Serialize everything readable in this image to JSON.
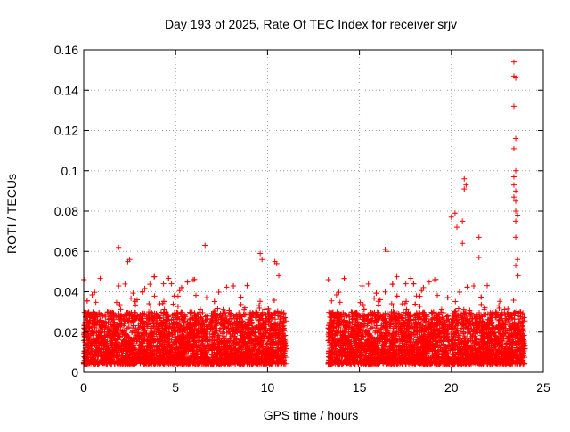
{
  "chart_data": {
    "type": "scatter",
    "title": "Day 193 of 2025, Rate Of TEC Index for receiver srjv",
    "xlabel": "GPS time / hours",
    "ylabel": "ROTI / TECUs",
    "xlim": [
      0,
      25
    ],
    "ylim": [
      0,
      0.16
    ],
    "xticks": [
      0,
      5,
      10,
      15,
      20,
      25
    ],
    "xtick_labels": [
      "0",
      "5",
      "10",
      "15",
      "20",
      "25"
    ],
    "yticks": [
      0,
      0.02,
      0.04,
      0.06,
      0.08,
      0.1,
      0.12,
      0.14,
      0.16
    ],
    "ytick_labels": [
      "0",
      "0.02",
      "0.04",
      "0.06",
      "0.08",
      "0.1",
      "0.12",
      "0.14",
      "0.16"
    ],
    "grid": true,
    "marker": "+",
    "color": "#ff0000",
    "bulk_band": {
      "segments": [
        [
          0.0,
          11.0
        ],
        [
          13.3,
          24.0
        ]
      ],
      "y_min": 0.004,
      "y_typical_max": 0.03,
      "approx_points": 9000
    },
    "notable_points": [
      {
        "x": 1.9,
        "y": 0.062
      },
      {
        "x": 2.4,
        "y": 0.055
      },
      {
        "x": 2.5,
        "y": 0.056
      },
      {
        "x": 6.6,
        "y": 0.063
      },
      {
        "x": 9.6,
        "y": 0.059
      },
      {
        "x": 9.7,
        "y": 0.056
      },
      {
        "x": 10.4,
        "y": 0.055
      },
      {
        "x": 10.5,
        "y": 0.054
      },
      {
        "x": 16.4,
        "y": 0.061
      },
      {
        "x": 16.5,
        "y": 0.06
      },
      {
        "x": 20.0,
        "y": 0.077
      },
      {
        "x": 20.2,
        "y": 0.079
      },
      {
        "x": 20.3,
        "y": 0.072
      },
      {
        "x": 20.6,
        "y": 0.075
      },
      {
        "x": 20.6,
        "y": 0.064
      },
      {
        "x": 20.7,
        "y": 0.096
      },
      {
        "x": 20.8,
        "y": 0.093
      },
      {
        "x": 20.7,
        "y": 0.091
      },
      {
        "x": 21.5,
        "y": 0.067
      },
      {
        "x": 21.5,
        "y": 0.057
      },
      {
        "x": 23.4,
        "y": 0.154
      },
      {
        "x": 23.4,
        "y": 0.147
      },
      {
        "x": 23.5,
        "y": 0.146
      },
      {
        "x": 23.4,
        "y": 0.132
      },
      {
        "x": 23.5,
        "y": 0.116
      },
      {
        "x": 23.4,
        "y": 0.111
      },
      {
        "x": 23.5,
        "y": 0.1
      },
      {
        "x": 23.4,
        "y": 0.097
      },
      {
        "x": 23.4,
        "y": 0.093
      },
      {
        "x": 23.5,
        "y": 0.09
      },
      {
        "x": 23.4,
        "y": 0.087
      },
      {
        "x": 23.5,
        "y": 0.085
      },
      {
        "x": 23.5,
        "y": 0.08
      },
      {
        "x": 23.6,
        "y": 0.078
      },
      {
        "x": 23.5,
        "y": 0.075
      },
      {
        "x": 23.5,
        "y": 0.067
      },
      {
        "x": 23.6,
        "y": 0.056
      },
      {
        "x": 23.5,
        "y": 0.053
      }
    ]
  }
}
